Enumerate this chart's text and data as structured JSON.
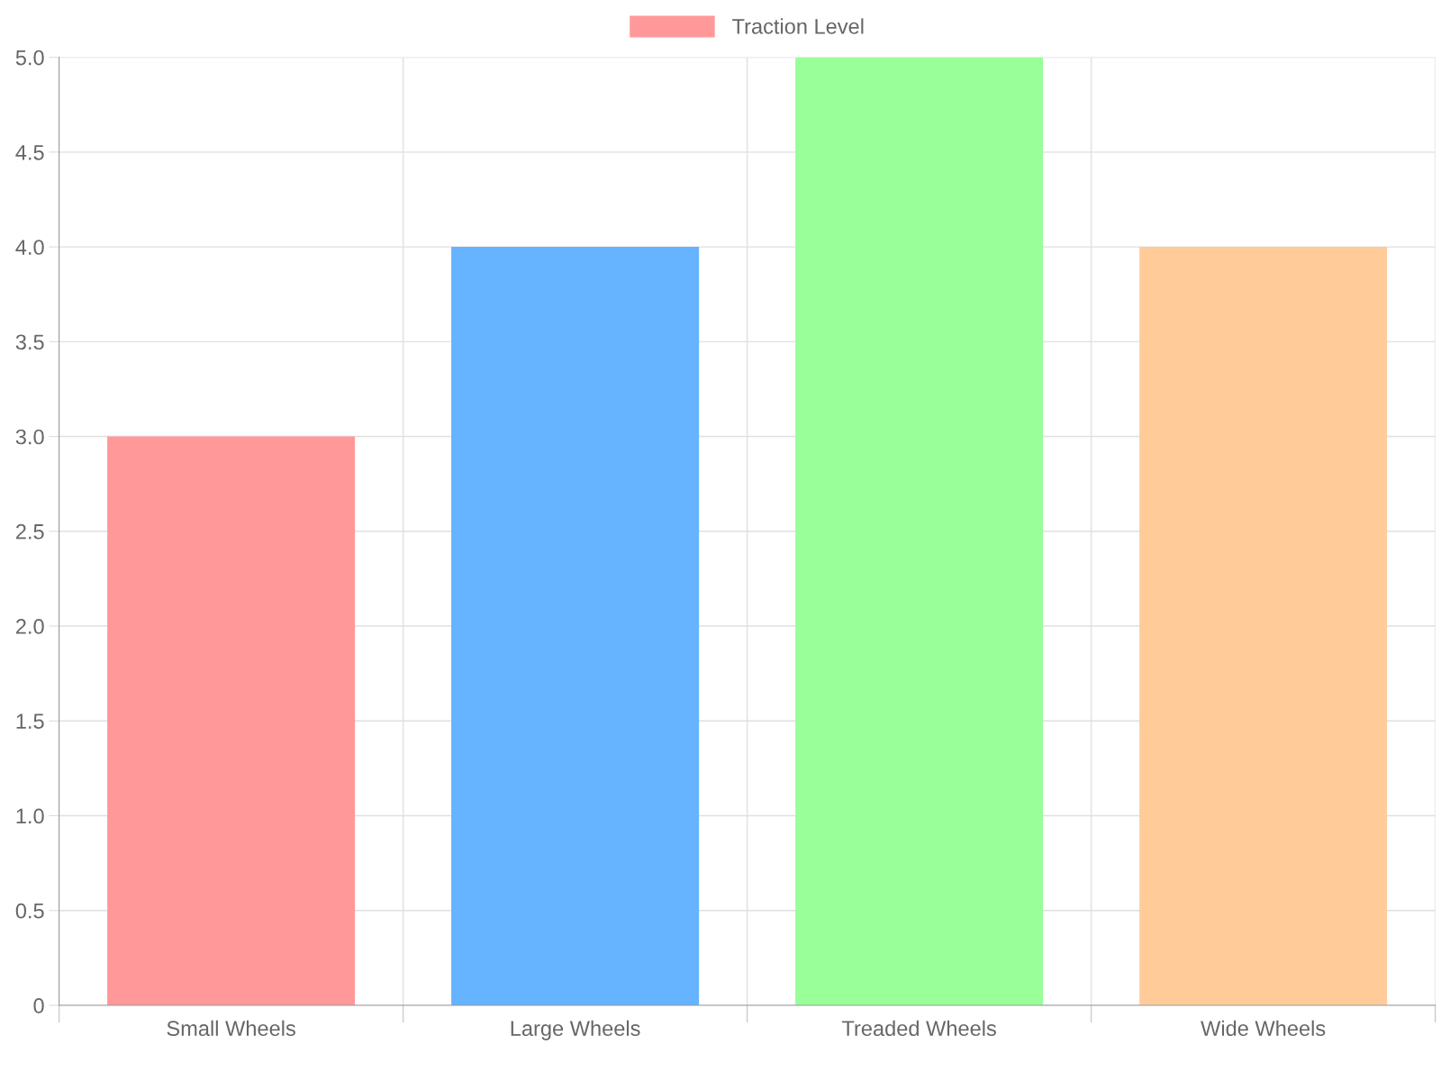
{
  "chart_data": {
    "type": "bar",
    "categories": [
      "Small Wheels",
      "Large Wheels",
      "Treaded Wheels",
      "Wide Wheels"
    ],
    "series": [
      {
        "name": "Traction Level",
        "colors": [
          "#ff9999",
          "#66b3ff",
          "#99ff99",
          "#ffcc99"
        ],
        "values": [
          3,
          4,
          5,
          4
        ]
      }
    ],
    "ylim": [
      0,
      5
    ],
    "yticks": [
      0,
      0.5,
      {
        "value": 1,
        "label": "1.0"
      },
      1.5,
      {
        "value": 2,
        "label": "2.0"
      },
      2.5,
      {
        "value": 3,
        "label": "3.0"
      },
      3.5,
      {
        "value": 4,
        "label": "4.0"
      },
      4.5,
      {
        "value": 5,
        "label": "5.0"
      }
    ],
    "grid": true,
    "legend": "top"
  }
}
